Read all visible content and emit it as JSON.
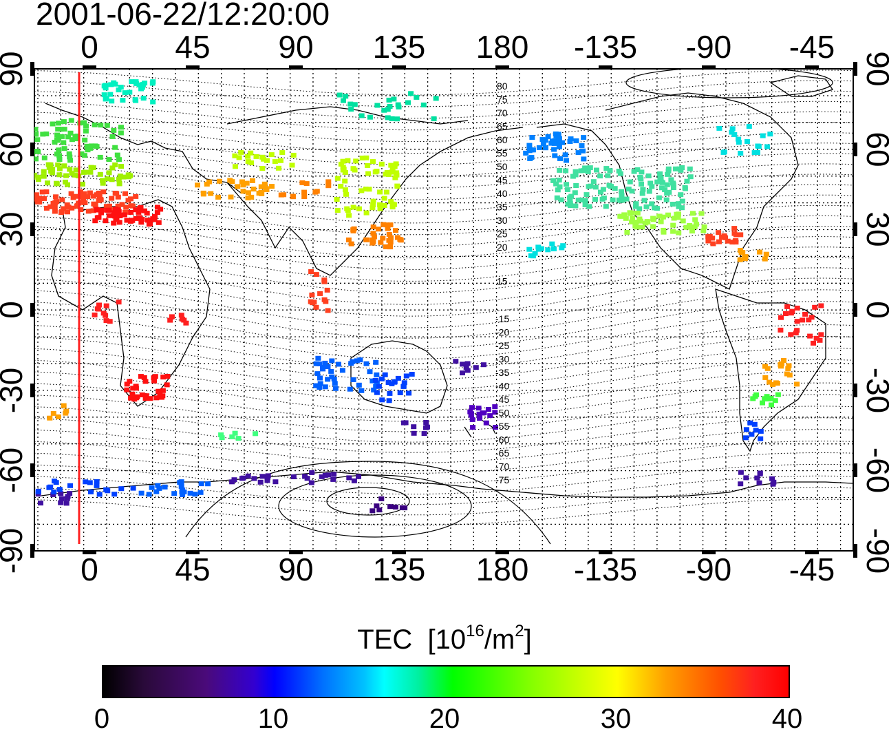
{
  "timestamp": "2001-06-22/12:20:00",
  "map": {
    "lon_labels": [
      "0",
      "45",
      "90",
      "135",
      "180",
      "-135",
      "-90",
      "-45"
    ],
    "lat_labels": [
      "90",
      "60",
      "30",
      "0",
      "-30",
      "-60",
      "-90"
    ],
    "magnetic_lat_labels_north": [
      "80",
      "75",
      "70",
      "65",
      "60",
      "55",
      "50",
      "45",
      "40",
      "35",
      "30",
      "25",
      "20",
      "15"
    ],
    "magnetic_lat_labels_south": [
      "-15",
      "-20",
      "-25",
      "-30",
      "-35",
      "-40",
      "-45",
      "-50",
      "-55",
      "-60",
      "-65",
      "-70",
      "-75"
    ]
  },
  "colorbar": {
    "title": "TEC",
    "unit_base": "[10",
    "unit_exp1": "16",
    "unit_mid": "/m",
    "unit_exp2": "2",
    "unit_end": "]",
    "range": [
      0,
      40
    ],
    "tick_labels": [
      "0",
      "10",
      "20",
      "30",
      "40"
    ],
    "colors": [
      "#000000",
      "#4a0a7a",
      "#0000ff",
      "#00ffff",
      "#00ff00",
      "#ffff00",
      "#ff0000"
    ]
  }
}
